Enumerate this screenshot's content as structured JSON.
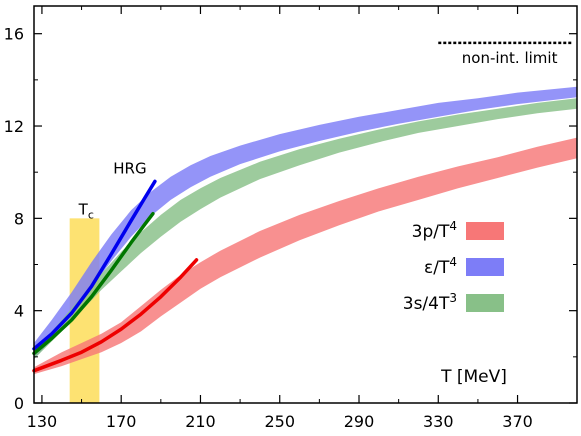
{
  "chart_data": {
    "type": "area",
    "xlabel": "T [MeV]",
    "xlim": [
      126,
      400
    ],
    "ylim": [
      0,
      17.2
    ],
    "x_ticks": [
      "130",
      "170",
      "210",
      "250",
      "290",
      "330",
      "370"
    ],
    "x_tick_values": [
      130,
      170,
      210,
      250,
      290,
      330,
      370
    ],
    "y_ticks": [
      "0",
      "4",
      "8",
      "12",
      "16"
    ],
    "y_tick_values": [
      0,
      4,
      8,
      12,
      16
    ],
    "grid": false,
    "legend_position": "right",
    "annotations": {
      "tc_label": "T",
      "tc_sub": "c",
      "tc_range": [
        144,
        159
      ],
      "tc_height": 8,
      "hrg_label": "HRG",
      "noninteracting_label": "non-int. limit",
      "noninteracting_value": 15.6,
      "noninteracting_xrange": [
        330,
        400
      ]
    },
    "legend": [
      {
        "base": "3p/T",
        "sup": "4",
        "series": "pressure"
      },
      {
        "base": "ε/T",
        "sup": "4",
        "series": "energy"
      },
      {
        "base": "3s/4T",
        "sup": "3",
        "series": "entropy"
      }
    ],
    "series": [
      {
        "id": "pressure",
        "color": "#f77777",
        "x": [
          126,
          140,
          150,
          160,
          170,
          180,
          190,
          200,
          210,
          220,
          240,
          260,
          280,
          300,
          320,
          340,
          360,
          380,
          400
        ],
        "upper": [
          1.55,
          2.2,
          2.6,
          3.0,
          3.5,
          4.2,
          4.9,
          5.55,
          6.1,
          6.6,
          7.45,
          8.15,
          8.75,
          9.3,
          9.8,
          10.25,
          10.65,
          11.1,
          11.5
        ],
        "lower": [
          1.25,
          1.6,
          1.9,
          2.2,
          2.6,
          3.1,
          3.75,
          4.35,
          4.95,
          5.45,
          6.3,
          7.05,
          7.7,
          8.3,
          8.8,
          9.3,
          9.75,
          10.2,
          10.6
        ]
      },
      {
        "id": "energy",
        "color": "#7d7df7",
        "x": [
          126,
          135,
          145,
          155,
          165,
          175,
          185,
          195,
          205,
          215,
          230,
          250,
          270,
          290,
          310,
          330,
          350,
          370,
          400
        ],
        "upper": [
          2.6,
          3.6,
          4.8,
          6.1,
          7.3,
          8.35,
          9.15,
          9.8,
          10.3,
          10.7,
          11.15,
          11.65,
          12.05,
          12.4,
          12.7,
          13.0,
          13.2,
          13.45,
          13.7
        ],
        "lower": [
          1.9,
          2.75,
          3.8,
          5.0,
          6.15,
          7.2,
          8.1,
          8.8,
          9.35,
          9.8,
          10.35,
          10.9,
          11.35,
          11.75,
          12.1,
          12.4,
          12.7,
          12.95,
          13.25
        ]
      },
      {
        "id": "entropy",
        "color": "#88c088",
        "x": [
          126,
          140,
          150,
          160,
          170,
          180,
          190,
          200,
          210,
          220,
          240,
          260,
          280,
          300,
          320,
          340,
          360,
          380,
          400
        ],
        "upper": [
          2.2,
          3.6,
          4.6,
          5.6,
          6.55,
          7.4,
          8.15,
          8.8,
          9.3,
          9.75,
          10.45,
          11.0,
          11.45,
          11.85,
          12.2,
          12.5,
          12.75,
          13.0,
          13.2
        ],
        "lower": [
          1.9,
          3.1,
          4.0,
          4.9,
          5.7,
          6.5,
          7.2,
          7.85,
          8.4,
          8.9,
          9.7,
          10.3,
          10.85,
          11.3,
          11.7,
          12.0,
          12.3,
          12.55,
          12.75
        ]
      }
    ],
    "hrg_curves": [
      {
        "id": "hrg-pressure",
        "color": "#ee0000",
        "x": [
          126,
          140,
          150,
          160,
          170,
          180,
          190,
          200,
          208
        ],
        "y": [
          1.4,
          1.85,
          2.2,
          2.65,
          3.2,
          3.85,
          4.6,
          5.45,
          6.2
        ]
      },
      {
        "id": "hrg-energy",
        "color": "#0000ee",
        "x": [
          126,
          135,
          145,
          155,
          165,
          175,
          182,
          187
        ],
        "y": [
          2.35,
          3.0,
          3.9,
          5.05,
          6.45,
          7.9,
          8.9,
          9.6
        ]
      },
      {
        "id": "hrg-entropy",
        "color": "#007700",
        "x": [
          126,
          135,
          145,
          155,
          165,
          175,
          182,
          186
        ],
        "y": [
          2.15,
          2.8,
          3.6,
          4.6,
          5.75,
          6.95,
          7.75,
          8.2
        ]
      }
    ]
  }
}
